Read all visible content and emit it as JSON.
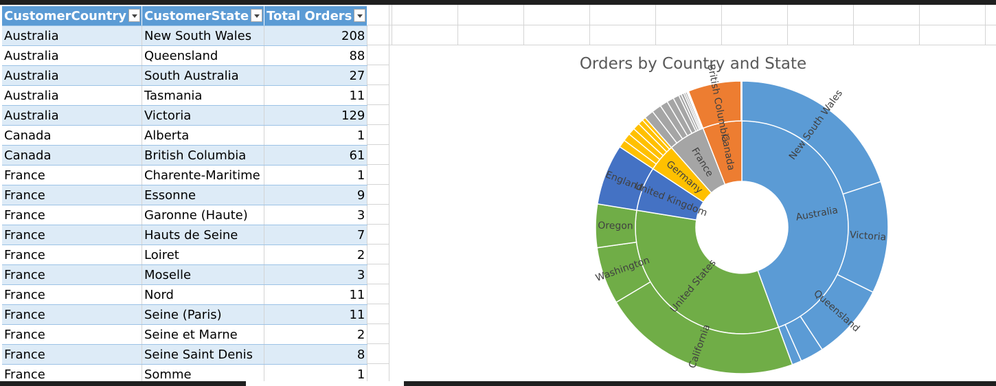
{
  "table": {
    "headers": [
      "CustomerCountry",
      "CustomerState",
      "Total Orders"
    ],
    "rows": [
      [
        "Australia",
        "New South Wales",
        "208"
      ],
      [
        "Australia",
        "Queensland",
        "88"
      ],
      [
        "Australia",
        "South Australia",
        "27"
      ],
      [
        "Australia",
        "Tasmania",
        "11"
      ],
      [
        "Australia",
        "Victoria",
        "129"
      ],
      [
        "Canada",
        "Alberta",
        "1"
      ],
      [
        "Canada",
        "British Columbia",
        "61"
      ],
      [
        "France",
        "Charente-Maritime",
        "1"
      ],
      [
        "France",
        "Essonne",
        "9"
      ],
      [
        "France",
        "Garonne (Haute)",
        "3"
      ],
      [
        "France",
        "Hauts de Seine",
        "7"
      ],
      [
        "France",
        "Loiret",
        "2"
      ],
      [
        "France",
        "Moselle",
        "3"
      ],
      [
        "France",
        "Nord",
        "11"
      ],
      [
        "France",
        "Seine (Paris)",
        "11"
      ],
      [
        "France",
        "Seine et Marne",
        "2"
      ],
      [
        "France",
        "Seine Saint Denis",
        "8"
      ],
      [
        "France",
        "Somme",
        "1"
      ]
    ]
  },
  "chart_data": {
    "type": "sunburst",
    "title": "Orders by Country and State",
    "inner": [
      {
        "name": "Australia",
        "value": 463,
        "color": "#5b9bd5"
      },
      {
        "name": "United States",
        "value": 346,
        "color": "#70ad47"
      },
      {
        "name": "United Kingdom",
        "value": 70,
        "color": "#4472c4"
      },
      {
        "name": "Germany",
        "value": 44,
        "color": "#ffc000"
      },
      {
        "name": "France",
        "value": 58,
        "color": "#a5a5a5"
      },
      {
        "name": "Canada",
        "value": 62,
        "color": "#ed7d31"
      }
    ],
    "outer": [
      {
        "name": "New South Wales",
        "value": 208,
        "parent": 0
      },
      {
        "name": "Victoria",
        "value": 129,
        "parent": 0
      },
      {
        "name": "Queensland",
        "value": 88,
        "parent": 0
      },
      {
        "name": "",
        "value": 27,
        "parent": 0
      },
      {
        "name": "",
        "value": 11,
        "parent": 0
      },
      {
        "name": "California",
        "value": 230,
        "parent": 1
      },
      {
        "name": "Washington",
        "value": 66,
        "parent": 1
      },
      {
        "name": "Oregon",
        "value": 50,
        "parent": 1
      },
      {
        "name": "England",
        "value": 70,
        "parent": 2
      },
      {
        "name": "",
        "value": 9,
        "parent": 3
      },
      {
        "name": "",
        "value": 9,
        "parent": 3
      },
      {
        "name": "",
        "value": 8,
        "parent": 3
      },
      {
        "name": "",
        "value": 8,
        "parent": 3
      },
      {
        "name": "",
        "value": 6,
        "parent": 3
      },
      {
        "name": "",
        "value": 4,
        "parent": 3
      },
      {
        "name": "",
        "value": 11,
        "parent": 4
      },
      {
        "name": "",
        "value": 11,
        "parent": 4
      },
      {
        "name": "",
        "value": 9,
        "parent": 4
      },
      {
        "name": "",
        "value": 8,
        "parent": 4
      },
      {
        "name": "",
        "value": 7,
        "parent": 4
      },
      {
        "name": "",
        "value": 3,
        "parent": 4
      },
      {
        "name": "",
        "value": 3,
        "parent": 4
      },
      {
        "name": "",
        "value": 2,
        "parent": 4
      },
      {
        "name": "",
        "value": 2,
        "parent": 4
      },
      {
        "name": "",
        "value": 1,
        "parent": 4
      },
      {
        "name": "",
        "value": 1,
        "parent": 4
      },
      {
        "name": "British Columbia",
        "value": 61,
        "parent": 5
      },
      {
        "name": "",
        "value": 1,
        "parent": 5
      }
    ]
  }
}
